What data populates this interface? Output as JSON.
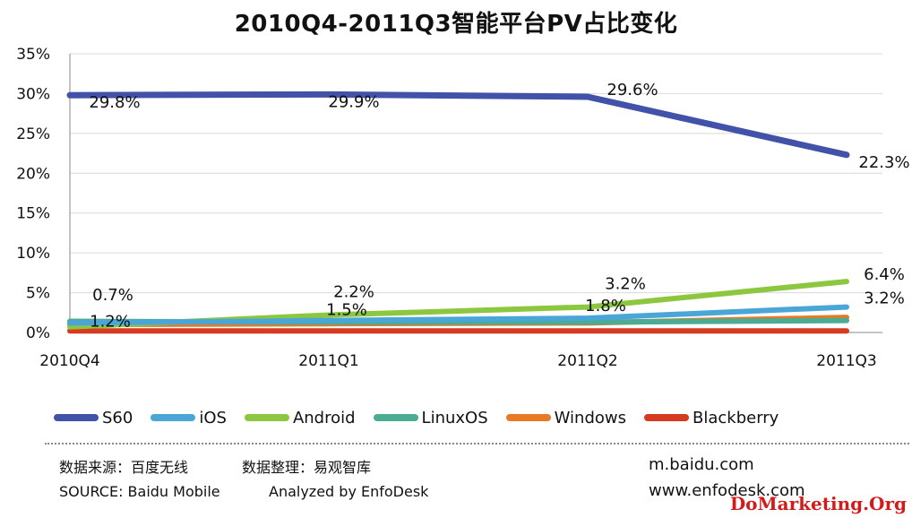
{
  "chart_data": {
    "type": "line",
    "title": "2010Q4-2011Q3智能平台PV占比变化",
    "categories": [
      "2010Q4",
      "2011Q1",
      "2011Q2",
      "2011Q3"
    ],
    "y_ticks": [
      "0%",
      "5%",
      "10%",
      "15%",
      "20%",
      "25%",
      "30%",
      "35%"
    ],
    "ylim": [
      0,
      35
    ],
    "y_unit": "%",
    "grid": "horizontal",
    "legend_position": "bottom",
    "series": [
      {
        "name": "S60",
        "color": "#4252a8",
        "values": [
          29.8,
          29.9,
          29.6,
          22.3
        ],
        "labels": [
          "29.8%",
          "29.9%",
          "29.6%",
          "22.3%"
        ]
      },
      {
        "name": "iOS",
        "color": "#4aa6d6",
        "values": [
          1.2,
          1.5,
          1.8,
          3.2
        ],
        "labels": [
          "1.2%",
          "1.5%",
          "1.8%",
          "3.2%"
        ]
      },
      {
        "name": "Android",
        "color": "#8dc63f",
        "values": [
          0.7,
          2.2,
          3.2,
          6.4
        ],
        "labels": [
          "0.7%",
          "2.2%",
          "3.2%",
          "6.4%"
        ]
      },
      {
        "name": "LinuxOS",
        "color": "#4bab93",
        "values": [
          1.4,
          1.3,
          1.3,
          1.5
        ],
        "labels": []
      },
      {
        "name": "Windows",
        "color": "#e87a26",
        "values": [
          1.0,
          1.1,
          1.2,
          1.9
        ],
        "labels": []
      },
      {
        "name": "Blackberry",
        "color": "#d63a20",
        "values": [
          0.2,
          0.2,
          0.2,
          0.2
        ],
        "labels": []
      }
    ]
  },
  "footer": {
    "source_cn": "数据来源：百度无线",
    "analysis_cn": "数据整理：易观智库",
    "source_en": "SOURCE: Baidu Mobile",
    "analysis_en": "Analyzed by EnfoDesk",
    "url1": "m.baidu.com",
    "url2": "www.enfodesk.com"
  },
  "watermark": "DoMarketing.Org"
}
